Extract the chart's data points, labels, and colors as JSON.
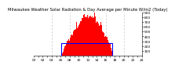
{
  "title": "Milwaukee Weather Solar Radiation & Day Average per Minute W/m2 (Today)",
  "background_color": "#ffffff",
  "bar_color": "#ff0000",
  "blue_rect_color": "#0000ff",
  "ylim": [
    0,
    900
  ],
  "xlim": [
    0,
    1440
  ],
  "yticks": [
    100,
    200,
    300,
    400,
    500,
    600,
    700,
    800,
    900
  ],
  "grid_color": "#bbbbbb",
  "grid_positions": [
    240,
    480,
    720,
    960,
    1200
  ],
  "bar_avg_y": 270,
  "bar_avg_x0": 370,
  "bar_avg_x1": 1050,
  "title_fontsize": 3.8,
  "tick_fontsize": 3.2,
  "seed": 12
}
